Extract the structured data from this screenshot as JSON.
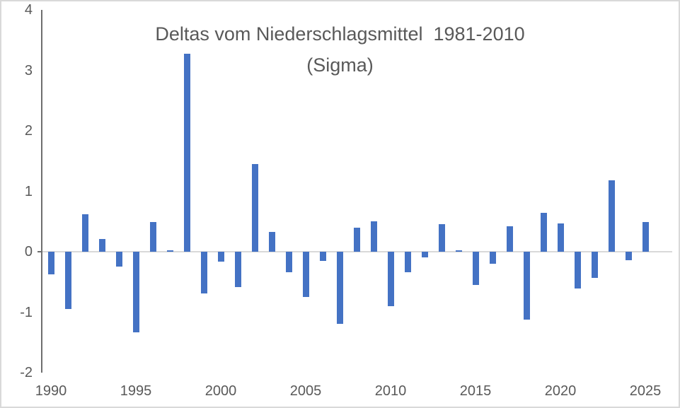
{
  "chart_data": {
    "type": "bar",
    "title": "Deltas vom Niederschlagsmittel  1981-2010",
    "subtitle": "(Sigma)",
    "xlabel": "",
    "ylabel": "",
    "x": [
      1990,
      1991,
      1992,
      1993,
      1994,
      1995,
      1996,
      1997,
      1998,
      1999,
      2000,
      2001,
      2002,
      2003,
      2004,
      2005,
      2006,
      2007,
      2008,
      2009,
      2010,
      2011,
      2012,
      2013,
      2014,
      2015,
      2016,
      2017,
      2018,
      2019,
      2020,
      2021,
      2022,
      2023,
      2024,
      2025
    ],
    "values": [
      -0.37,
      -0.95,
      0.62,
      0.21,
      -0.25,
      -1.33,
      0.49,
      0.02,
      3.28,
      -0.69,
      -0.16,
      -0.59,
      1.45,
      0.33,
      -0.34,
      -0.75,
      -0.15,
      -1.19,
      0.4,
      0.5,
      -0.9,
      -0.34,
      -0.09,
      0.46,
      0.02,
      -0.55,
      -0.2,
      0.42,
      -1.12,
      0.64,
      0.47,
      -0.61,
      -0.43,
      1.18,
      -0.14,
      0.49
    ],
    "ylim": [
      -2,
      4
    ],
    "yticks": [
      4,
      3,
      2,
      1,
      0,
      -1,
      -2
    ],
    "xticks": [
      1990,
      1995,
      2000,
      2005,
      2010,
      2015,
      2020,
      2025
    ],
    "grid": "zero-line-only",
    "legend": "none"
  },
  "colors": {
    "bar": "#4472C4",
    "title_text": "#595959",
    "axis_text": "#595959",
    "axis_line": "#6E6E6E",
    "zero_line": "#D9D9D9",
    "frame_border": "#D9D9D9",
    "background": "#FFFFFF"
  }
}
